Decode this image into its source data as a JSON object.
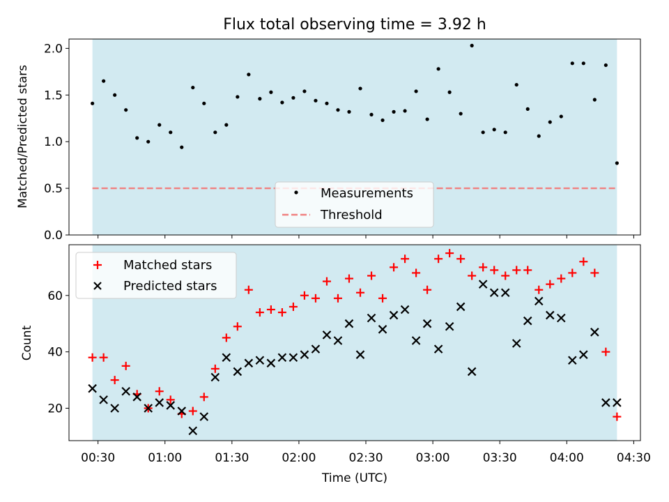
{
  "colors": {
    "band": "#add8e6",
    "measurement": "#000000",
    "threshold": "#f08080",
    "matched": "#ff0000",
    "predicted": "#000000"
  },
  "chart_data": [
    {
      "type": "scatter",
      "title": "Flux total observing time = 3.92 h",
      "xlabel": "",
      "ylabel": "Matched/Predicted stars",
      "ylim": [
        0.0,
        2.1
      ],
      "yticks": [
        "0.0",
        "0.5",
        "1.0",
        "1.5",
        "2.0"
      ],
      "shaded_span_minutes": [
        27.5,
        262.5
      ],
      "x_minutes": [
        27.5,
        32.5,
        37.5,
        42.5,
        47.5,
        52.5,
        57.5,
        62.5,
        67.5,
        72.5,
        77.5,
        82.5,
        87.5,
        92.5,
        97.5,
        102.5,
        107.5,
        112.5,
        117.5,
        122.5,
        127.5,
        132.5,
        137.5,
        142.5,
        147.5,
        152.5,
        157.5,
        162.5,
        167.5,
        172.5,
        177.5,
        182.5,
        187.5,
        192.5,
        197.5,
        202.5,
        207.5,
        212.5,
        217.5,
        222.5,
        227.5,
        232.5,
        237.5,
        242.5,
        247.5,
        252.5,
        257.5,
        262.5
      ],
      "series": [
        {
          "name": "Measurements",
          "values": [
            1.41,
            1.65,
            1.5,
            1.34,
            1.04,
            1.0,
            1.18,
            1.1,
            0.94,
            1.58,
            1.41,
            1.1,
            1.18,
            1.48,
            1.72,
            1.46,
            1.53,
            1.42,
            1.47,
            1.54,
            1.44,
            1.41,
            1.34,
            1.32,
            1.57,
            1.29,
            1.23,
            1.32,
            1.33,
            1.54,
            1.24,
            1.78,
            1.53,
            1.3,
            2.03,
            1.1,
            1.13,
            1.1,
            1.61,
            1.35,
            1.06,
            1.21,
            1.27,
            1.84,
            1.84,
            1.45,
            1.82,
            0.77
          ]
        },
        {
          "name": "Threshold",
          "constant": 0.5
        }
      ],
      "legend_position": "lower-center"
    },
    {
      "type": "scatter",
      "title": "",
      "xlabel": "Time (UTC)",
      "ylabel": "Count",
      "ylim": [
        8.5,
        78
      ],
      "yticks": [
        "20",
        "40",
        "60"
      ],
      "xticks": [
        "00:30",
        "01:00",
        "01:30",
        "02:00",
        "02:30",
        "03:00",
        "03:30",
        "04:00",
        "04:30"
      ],
      "shaded_span_minutes": [
        27.5,
        262.5
      ],
      "x_minutes": [
        27.5,
        32.5,
        37.5,
        42.5,
        47.5,
        52.5,
        57.5,
        62.5,
        67.5,
        72.5,
        77.5,
        82.5,
        87.5,
        92.5,
        97.5,
        102.5,
        107.5,
        112.5,
        117.5,
        122.5,
        127.5,
        132.5,
        137.5,
        142.5,
        147.5,
        152.5,
        157.5,
        162.5,
        167.5,
        172.5,
        177.5,
        182.5,
        187.5,
        192.5,
        197.5,
        202.5,
        207.5,
        212.5,
        217.5,
        222.5,
        227.5,
        232.5,
        237.5,
        242.5,
        247.5,
        252.5,
        257.5,
        262.5
      ],
      "series": [
        {
          "name": "Matched stars",
          "values": [
            38,
            38,
            30,
            35,
            25,
            20,
            26,
            23,
            18,
            19,
            24,
            34,
            45,
            49,
            62,
            54,
            55,
            54,
            56,
            60,
            59,
            65,
            59,
            66,
            61,
            67,
            59,
            70,
            73,
            68,
            62,
            73,
            75,
            73,
            67,
            70,
            69,
            67,
            69,
            69,
            62,
            64,
            66,
            68,
            72,
            68,
            40,
            17
          ]
        },
        {
          "name": "Predicted stars",
          "values": [
            27,
            23,
            20,
            26,
            24,
            20,
            22,
            21,
            19,
            12,
            17,
            31,
            38,
            33,
            36,
            37,
            36,
            38,
            38,
            39,
            41,
            46,
            44,
            50,
            39,
            52,
            48,
            53,
            55,
            44,
            50,
            41,
            49,
            56,
            33,
            64,
            61,
            61,
            43,
            51,
            58,
            53,
            52,
            37,
            39,
            47,
            22,
            22
          ]
        }
      ],
      "legend_position": "top-left"
    }
  ]
}
